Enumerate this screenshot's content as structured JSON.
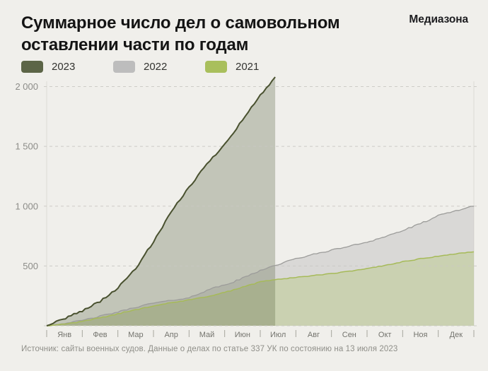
{
  "header": {
    "title": "Суммарное число дел о самовольном оставлении части по годам",
    "brand": "Медиазона"
  },
  "legend": [
    {
      "label": "2023",
      "color": "#5c6547"
    },
    {
      "label": "2022",
      "color": "#bdbdbd"
    },
    {
      "label": "2021",
      "color": "#a9bf5c"
    }
  ],
  "chart_data": {
    "type": "area",
    "title": "Суммарное число дел о самовольном оставлении части по годам",
    "xlabel": "",
    "ylabel": "",
    "x_unit": "months (0 = 1 января, 12 = 31 декабря)",
    "months": [
      "Янв",
      "Фев",
      "Мар",
      "Апр",
      "Май",
      "Июн",
      "Июл",
      "Авг",
      "Сен",
      "Окт",
      "Ноя",
      "Дек"
    ],
    "ylim": [
      0,
      2100
    ],
    "yticks": [
      {
        "value": 500,
        "label": "500"
      },
      {
        "value": 1000,
        "label": "1 000"
      },
      {
        "value": 1500,
        "label": "1 500"
      },
      {
        "value": 2000,
        "label": "2 000"
      }
    ],
    "grid": "dashed horizontal",
    "legend_position": "top-left",
    "series": [
      {
        "name": "2022",
        "line_color": "#9c9c9a",
        "fill_color": "#bdbdbd",
        "fill_opacity": 0.45,
        "line_width": 1.3,
        "points": [
          [
            0,
            0
          ],
          [
            0.5,
            20
          ],
          [
            1,
            45
          ],
          [
            1.5,
            80
          ],
          [
            2,
            115
          ],
          [
            2.5,
            155
          ],
          [
            3,
            190
          ],
          [
            3.5,
            212
          ],
          [
            4,
            232
          ],
          [
            4.5,
            300
          ],
          [
            5,
            340
          ],
          [
            5.5,
            395
          ],
          [
            6,
            465
          ],
          [
            6.42,
            505
          ],
          [
            7,
            560
          ],
          [
            7.5,
            597
          ],
          [
            8,
            632
          ],
          [
            8.5,
            665
          ],
          [
            9,
            700
          ],
          [
            9.5,
            745
          ],
          [
            10,
            795
          ],
          [
            10.5,
            852
          ],
          [
            11,
            920
          ],
          [
            11.5,
            962
          ],
          [
            12,
            1000
          ]
        ]
      },
      {
        "name": "2021",
        "line_color": "#a6ba58",
        "fill_color": "#a9bf5c",
        "fill_opacity": 0.3,
        "line_width": 1.5,
        "points": [
          [
            0,
            0
          ],
          [
            0.5,
            15
          ],
          [
            1,
            35
          ],
          [
            1.5,
            65
          ],
          [
            2,
            100
          ],
          [
            2.5,
            135
          ],
          [
            3,
            168
          ],
          [
            3.5,
            192
          ],
          [
            4,
            215
          ],
          [
            4.5,
            245
          ],
          [
            5,
            278
          ],
          [
            5.5,
            322
          ],
          [
            6,
            366
          ],
          [
            6.42,
            386
          ],
          [
            7,
            404
          ],
          [
            7.5,
            420
          ],
          [
            8,
            436
          ],
          [
            8.5,
            455
          ],
          [
            9,
            476
          ],
          [
            9.5,
            505
          ],
          [
            10,
            536
          ],
          [
            10.5,
            560
          ],
          [
            11,
            582
          ],
          [
            11.5,
            602
          ],
          [
            12,
            618
          ]
        ]
      },
      {
        "name": "2023",
        "line_color": "#49512f",
        "fill_color": "#5a6341",
        "fill_opacity": 0.3,
        "line_width": 2,
        "points": [
          [
            0,
            0
          ],
          [
            0.45,
            55
          ],
          [
            1,
            125
          ],
          [
            1.5,
            205
          ],
          [
            2,
            315
          ],
          [
            2.5,
            480
          ],
          [
            3,
            700
          ],
          [
            3.5,
            950
          ],
          [
            4,
            1160
          ],
          [
            4.5,
            1350
          ],
          [
            5,
            1520
          ],
          [
            5.5,
            1720
          ],
          [
            6,
            1925
          ],
          [
            6.42,
            2080
          ]
        ]
      }
    ]
  },
  "footer": {
    "source": "Источник: сайты военных судов. Данные о делах по статье 337 УК по состоянию на 13 июля 2023"
  }
}
